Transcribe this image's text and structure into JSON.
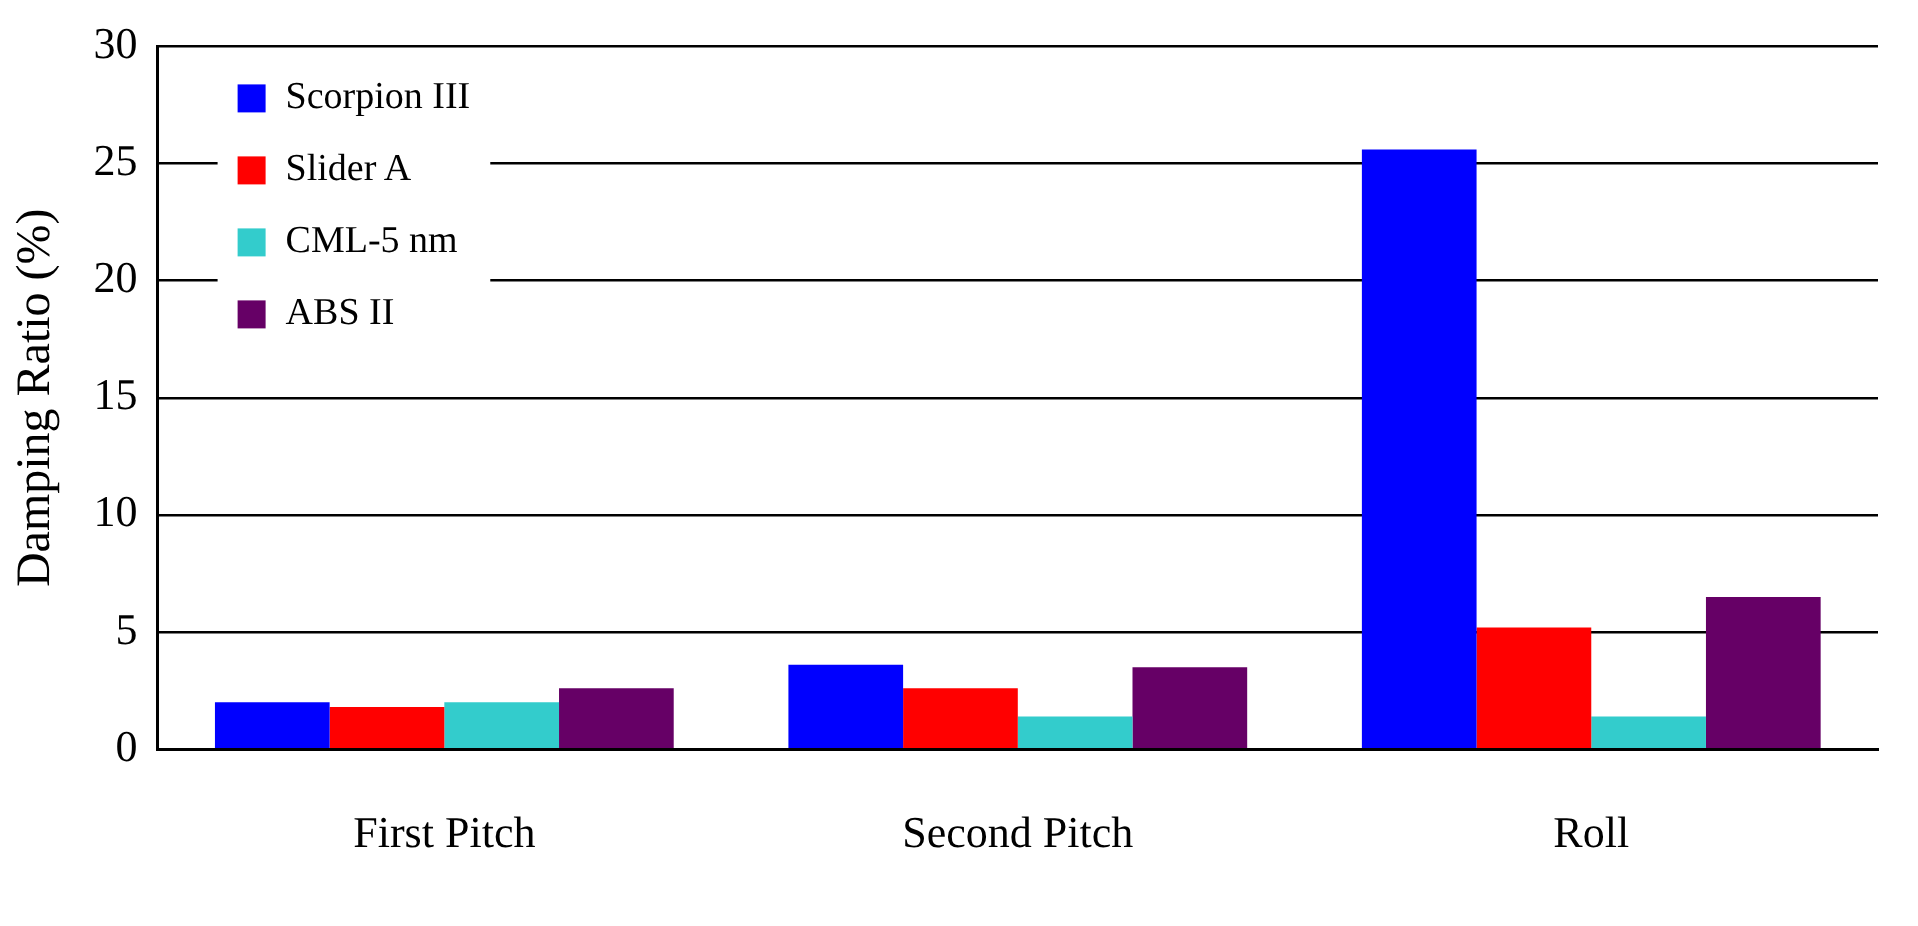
{
  "chart_data": {
    "type": "bar",
    "ylabel": "Damping Ratio (%)",
    "categories": [
      "First Pitch",
      "Second Pitch",
      "Roll"
    ],
    "series": [
      {
        "name": "Scorpion III",
        "color": "#0000ff",
        "values": [
          2.0,
          3.6,
          25.6
        ]
      },
      {
        "name": "Slider A",
        "color": "#ff0000",
        "values": [
          1.8,
          2.6,
          5.2
        ]
      },
      {
        "name": "CML-5 nm",
        "color": "#33cccc",
        "values": [
          2.0,
          1.4,
          1.4
        ]
      },
      {
        "name": "ABS II",
        "color": "#660066",
        "values": [
          2.6,
          3.5,
          6.5
        ]
      }
    ],
    "ylim": [
      0,
      30
    ],
    "yticks": [
      0,
      5,
      10,
      15,
      20,
      25,
      30
    ],
    "grid": "y",
    "legend": "top left"
  }
}
